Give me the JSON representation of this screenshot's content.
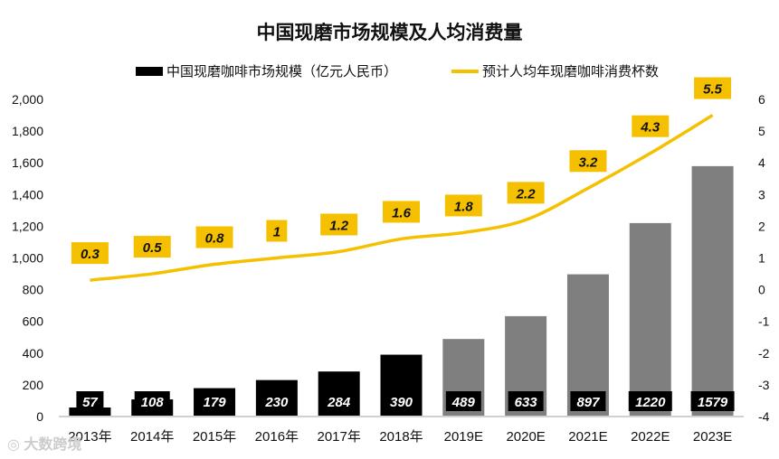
{
  "chart_data": {
    "type": "bar+line",
    "title": "中国现磨市场规模及人均消费量",
    "categories": [
      "2013年",
      "2014年",
      "2015年",
      "2016年",
      "2017年",
      "2018年",
      "2019E",
      "2020E",
      "2021E",
      "2022E",
      "2023E"
    ],
    "series": [
      {
        "name": "中国现磨咖啡市场规模（亿元人民币）",
        "type": "bar",
        "axis": "left",
        "values": [
          57,
          108,
          179,
          230,
          284,
          390,
          489,
          633,
          897,
          1220,
          1579
        ],
        "labels": [
          "57",
          "108",
          "179",
          "230",
          "284",
          "390",
          "489",
          "633",
          "897",
          "1220",
          "1579"
        ],
        "colors": [
          "#000000",
          "#000000",
          "#000000",
          "#000000",
          "#000000",
          "#000000",
          "#7f7f7f",
          "#7f7f7f",
          "#7f7f7f",
          "#7f7f7f",
          "#7f7f7f"
        ]
      },
      {
        "name": "预计人均年现磨咖啡消费杯数",
        "type": "line",
        "axis": "right",
        "values": [
          0.3,
          0.5,
          0.8,
          1,
          1.2,
          1.6,
          1.8,
          2.2,
          3.2,
          4.3,
          5.5
        ],
        "labels": [
          "0.3",
          "0.5",
          "0.8",
          "1",
          "1.2",
          "1.6",
          "1.8",
          "2.2",
          "3.2",
          "4.3",
          "5.5"
        ],
        "color": "#f5c000"
      }
    ],
    "left_axis": {
      "range": [
        0,
        2000
      ],
      "ticks": [
        "0",
        "200",
        "400",
        "600",
        "800",
        "1,000",
        "1,200",
        "1,400",
        "1,600",
        "1,800",
        "2,000"
      ]
    },
    "right_axis": {
      "range": [
        -4,
        6
      ],
      "ticks": [
        "-4",
        "-3",
        "-2",
        "-1",
        "0",
        "1",
        "2",
        "3",
        "4",
        "5",
        "6"
      ]
    },
    "grid": false,
    "legend": "top"
  },
  "watermark": "大数跨境"
}
